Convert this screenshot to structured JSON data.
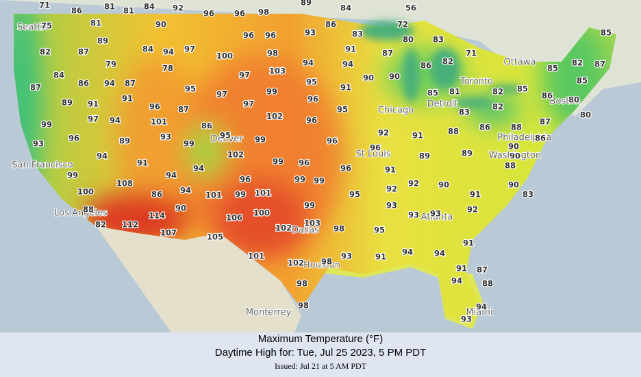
{
  "map": {
    "temperatures": [
      71,
      86,
      81,
      81,
      84,
      92,
      96,
      96,
      98,
      89,
      84,
      56,
      75,
      81,
      90,
      96,
      96,
      93,
      86,
      72,
      83,
      80,
      83,
      85,
      82,
      87,
      89,
      84,
      94,
      97,
      100,
      98,
      91,
      87,
      71,
      86,
      82,
      79,
      84,
      78,
      94,
      94,
      103,
      97,
      85,
      82,
      87,
      85,
      87,
      86,
      94,
      87,
      95,
      97,
      99,
      95,
      91,
      90,
      90,
      85,
      81,
      82,
      85,
      86,
      80,
      89,
      91,
      91,
      96,
      87,
      97,
      96,
      83,
      82,
      80,
      87,
      97,
      94,
      101,
      102,
      96,
      95,
      99,
      86,
      88,
      86,
      88,
      91,
      93,
      96,
      89,
      93,
      99,
      95,
      99,
      96,
      92,
      90,
      86,
      94,
      102,
      96,
      89,
      89,
      91,
      99,
      96,
      90,
      88,
      99,
      94,
      96,
      91,
      94,
      96,
      99,
      99,
      100,
      108,
      86,
      94,
      101,
      99,
      101,
      95,
      92,
      92,
      90,
      91,
      90,
      83,
      88,
      90,
      93,
      92,
      99,
      82,
      112,
      114,
      106,
      100,
      102,
      103,
      98,
      95,
      93,
      93,
      107,
      105,
      91,
      101,
      102,
      98,
      93,
      91,
      94,
      94,
      91,
      87,
      98,
      94,
      88,
      98,
      94,
      93
    ],
    "cities": [
      "Seattle",
      "San Francisco",
      "Los Angeles",
      "Denver",
      "St Louis",
      "Chicago",
      "Detroit",
      "Toronto",
      "Ottawa",
      "Philadelphia",
      "Washington",
      "Boston",
      "Atlanta",
      "Dallas",
      "Houston",
      "Miami",
      "Monterrey"
    ]
  },
  "caption": {
    "title": "Maximum Temperature (°F)",
    "subtitle": "Daytime High for: Tue, Jul 25 2023,   5 PM PDT",
    "issued": "Issued: Jul 21 at 5 AM PDT"
  }
}
